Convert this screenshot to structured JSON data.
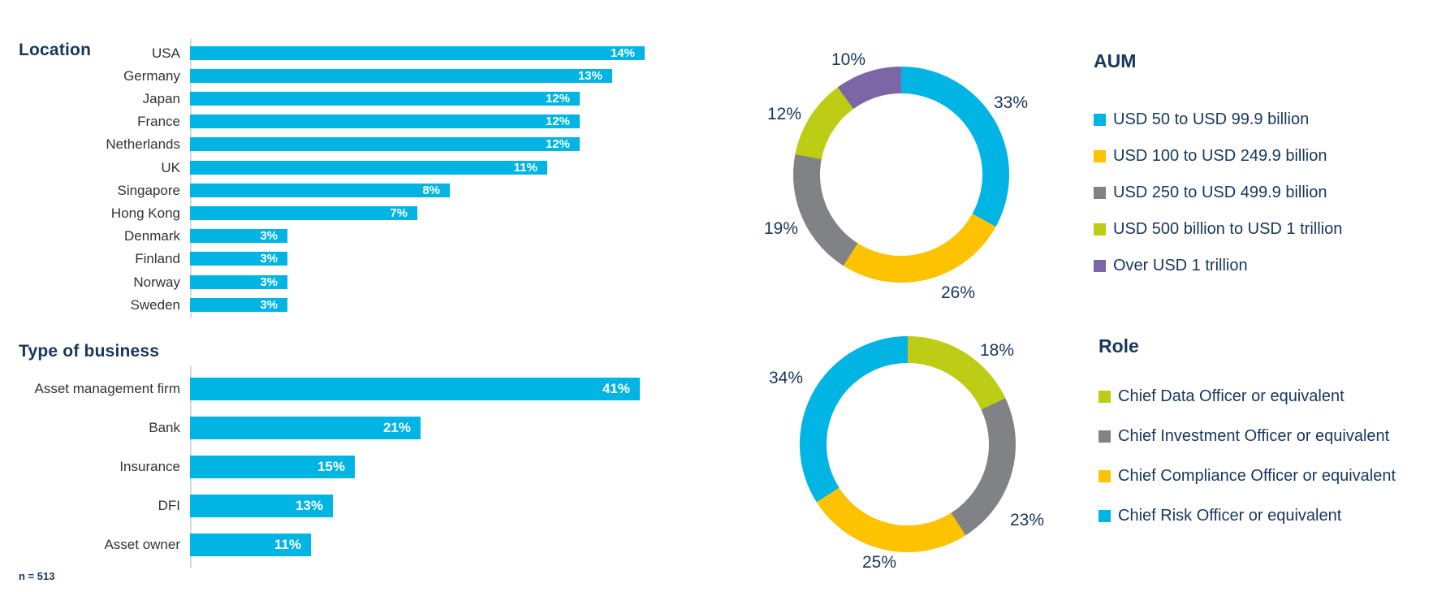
{
  "colors": {
    "cyan": "#00B4E3",
    "yellow": "#FDC300",
    "gray": "#808285",
    "green": "#BDCC15",
    "purple": "#7D66A5",
    "navy": "#17375C"
  },
  "footnote": "n = 513",
  "location_chart": {
    "title": "Location",
    "bars": [
      {
        "label": "USA",
        "value": 14,
        "display": "14%"
      },
      {
        "label": "Germany",
        "value": 13,
        "display": "13%"
      },
      {
        "label": "Japan",
        "value": 12,
        "display": "12%"
      },
      {
        "label": "France",
        "value": 12,
        "display": "12%"
      },
      {
        "label": "Netherlands",
        "value": 12,
        "display": "12%"
      },
      {
        "label": "UK",
        "value": 11,
        "display": "11%"
      },
      {
        "label": "Singapore",
        "value": 8,
        "display": "8%"
      },
      {
        "label": "Hong Kong",
        "value": 7,
        "display": "7%"
      },
      {
        "label": "Denmark",
        "value": 3,
        "display": "3%"
      },
      {
        "label": "Finland",
        "value": 3,
        "display": "3%"
      },
      {
        "label": "Norway",
        "value": 3,
        "display": "3%"
      },
      {
        "label": "Sweden",
        "value": 3,
        "display": "3%"
      }
    ]
  },
  "business_chart": {
    "title": "Type of business",
    "bars": [
      {
        "label": "Asset management firm",
        "value": 41,
        "display": "41%"
      },
      {
        "label": "Bank",
        "value": 21,
        "display": "21%"
      },
      {
        "label": "Insurance",
        "value": 15,
        "display": "15%"
      },
      {
        "label": "DFI",
        "value": 13,
        "display": "13%"
      },
      {
        "label": "Asset owner",
        "value": 11,
        "display": "11%"
      }
    ]
  },
  "aum": {
    "title": "AUM",
    "slices": [
      {
        "label": "USD 50 to USD 99.9 billion",
        "value": 33,
        "display": "33%",
        "color": "cyan"
      },
      {
        "label": "USD 100 to USD 249.9 billion",
        "value": 26,
        "display": "26%",
        "color": "yellow"
      },
      {
        "label": "USD 250 to USD 499.9 billion",
        "value": 19,
        "display": "19%",
        "color": "gray"
      },
      {
        "label": "USD 500 billion to USD 1 trillion",
        "value": 12,
        "display": "12%",
        "color": "green"
      },
      {
        "label": "Over USD 1 trillion",
        "value": 10,
        "display": "10%",
        "color": "purple"
      }
    ]
  },
  "role": {
    "title": "Role",
    "slices": [
      {
        "label": "Chief Data Officer or equivalent",
        "value": 18,
        "display": "18%",
        "color": "green"
      },
      {
        "label": "Chief Investment Officer or equivalent",
        "value": 23,
        "display": "23%",
        "color": "gray"
      },
      {
        "label": "Chief Compliance Officer or equivalent",
        "value": 25,
        "display": "25%",
        "color": "yellow"
      },
      {
        "label": "Chief Risk Officer or equivalent",
        "value": 34,
        "display": "34%",
        "color": "cyan"
      }
    ]
  },
  "chart_data": [
    {
      "type": "bar",
      "orientation": "horizontal",
      "title": "Location",
      "categories": [
        "USA",
        "Germany",
        "Japan",
        "France",
        "Netherlands",
        "UK",
        "Singapore",
        "Hong Kong",
        "Denmark",
        "Finland",
        "Norway",
        "Sweden"
      ],
      "values": [
        14,
        13,
        12,
        12,
        12,
        11,
        8,
        7,
        3,
        3,
        3,
        3
      ],
      "unit": "%",
      "xlabel": "",
      "ylabel": "",
      "data_labels": "inside-end, white",
      "bar_color": "#00B4E3"
    },
    {
      "type": "bar",
      "orientation": "horizontal",
      "title": "Type of business",
      "categories": [
        "Asset management firm",
        "Bank",
        "Insurance",
        "DFI",
        "Asset owner"
      ],
      "values": [
        41,
        21,
        15,
        13,
        11
      ],
      "unit": "%",
      "xlabel": "",
      "ylabel": "",
      "data_labels": "inside-end, white",
      "bar_color": "#00B4E3",
      "note": "n = 513"
    },
    {
      "type": "pie",
      "subtype": "donut",
      "title": "AUM",
      "categories": [
        "USD 50 to USD 99.9 billion",
        "USD 100 to USD 249.9 billion",
        "USD 250 to USD 499.9 billion",
        "USD 500 billion to USD 1 trillion",
        "Over USD 1 trillion"
      ],
      "values": [
        33,
        26,
        19,
        12,
        10
      ],
      "unit": "%",
      "colors": [
        "#00B4E3",
        "#FDC300",
        "#808285",
        "#BDCC15",
        "#7D66A5"
      ],
      "start_angle": "12 o'clock, clockwise",
      "legend_position": "right"
    },
    {
      "type": "pie",
      "subtype": "donut",
      "title": "Role",
      "categories": [
        "Chief Data Officer or equivalent",
        "Chief Investment Officer or equivalent",
        "Chief Compliance Officer or equivalent",
        "Chief Risk Officer or equivalent"
      ],
      "values": [
        18,
        23,
        25,
        34
      ],
      "unit": "%",
      "colors": [
        "#BDCC15",
        "#808285",
        "#FDC300",
        "#00B4E3"
      ],
      "start_angle": "12 o'clock, clockwise",
      "legend_position": "right"
    }
  ]
}
